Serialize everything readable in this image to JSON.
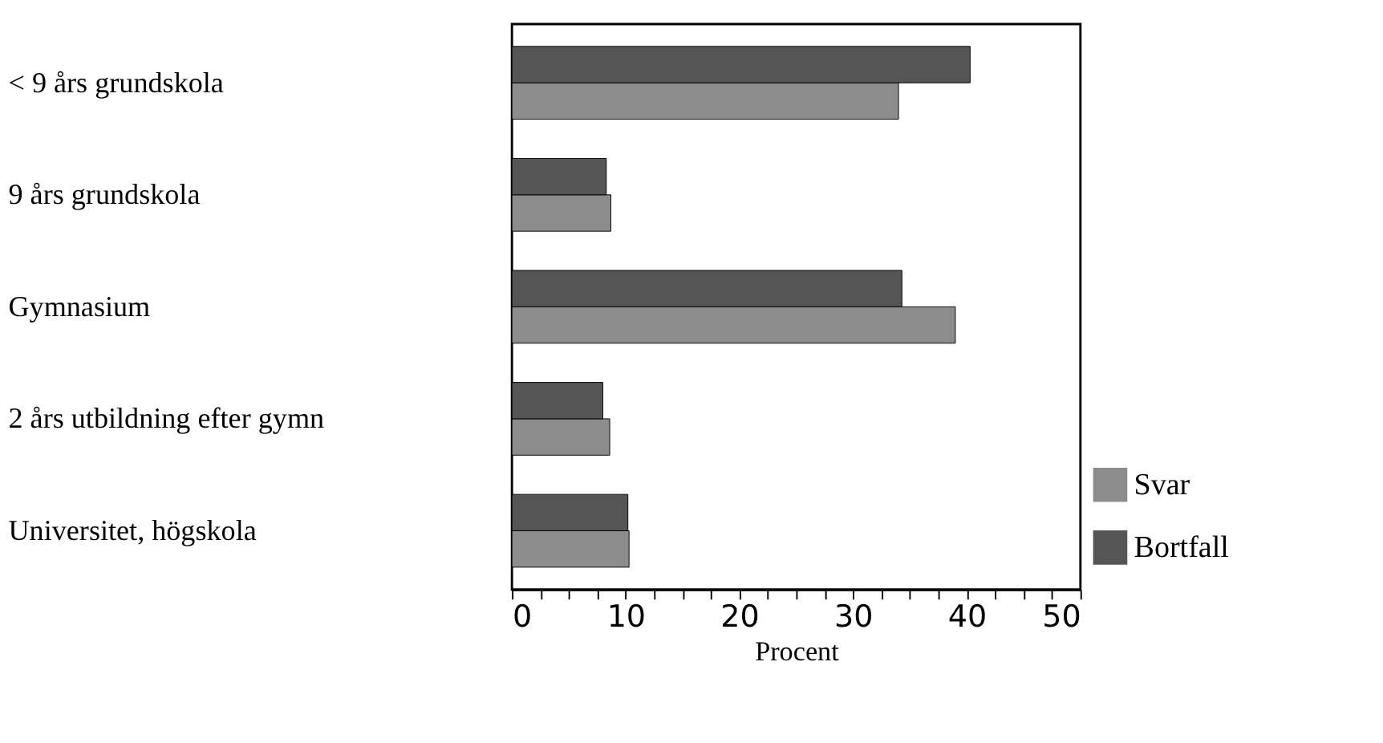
{
  "chart_data": {
    "type": "bar",
    "orientation": "horizontal",
    "xlabel": "Procent",
    "categories": [
      "< 9 års grundskola",
      "9 års grundskola",
      "Gymnasium",
      "2 års utbildning efter gymn",
      "Universitet, högskola"
    ],
    "series": [
      {
        "name": "Svar",
        "color": "#8c8c8c",
        "values": [
          34.0,
          8.7,
          39.0,
          8.6,
          10.3
        ]
      },
      {
        "name": "Bortfall",
        "color": "#555555",
        "values": [
          40.3,
          8.3,
          34.3,
          8.0,
          10.2
        ]
      }
    ],
    "xlim": [
      0,
      50
    ],
    "xticks": [
      0,
      {
        "value": 2.5,
        "label": null
      },
      {
        "value": 5,
        "label": null
      },
      {
        "value": 7.5,
        "label": null
      },
      10,
      {
        "value": 12.5,
        "label": null
      },
      {
        "value": 15,
        "label": null
      },
      {
        "value": 17.5,
        "label": null
      },
      20,
      {
        "value": 22.5,
        "label": null
      },
      {
        "value": 25,
        "label": null
      },
      {
        "value": 27.5,
        "label": null
      },
      30,
      {
        "value": 32.5,
        "label": null
      },
      {
        "value": 35,
        "label": null
      },
      {
        "value": 37.5,
        "label": null
      },
      40,
      {
        "value": 42.5,
        "label": null
      },
      {
        "value": 45,
        "label": null
      },
      {
        "value": 47.5,
        "label": null
      },
      50
    ],
    "grid": false,
    "legend": "bottom right"
  }
}
